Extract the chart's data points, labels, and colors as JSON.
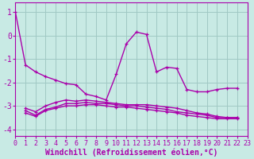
{
  "xlabel": "Windchill (Refroidissement éolien,°C)",
  "bg_color": "#c8eae4",
  "grid_color": "#a0c8c4",
  "line_color": "#aa00aa",
  "tick_color": "#aa00aa",
  "xlim": [
    0,
    23
  ],
  "ylim": [
    -4.3,
    1.4
  ],
  "xticks": [
    0,
    1,
    2,
    3,
    4,
    5,
    6,
    7,
    8,
    9,
    10,
    11,
    12,
    13,
    14,
    15,
    16,
    17,
    18,
    19,
    20,
    21,
    22,
    23
  ],
  "yticks": [
    -4,
    -3,
    -2,
    -1,
    0,
    1
  ],
  "series": [
    [
      1.0,
      -1.25,
      -1.55,
      -1.75,
      -1.9,
      -2.05,
      -2.1,
      -2.5,
      -2.6,
      -2.75,
      -1.65,
      -0.35,
      0.15,
      0.05,
      -1.55,
      -1.35,
      -1.4,
      -2.3,
      -2.4,
      -2.4,
      -2.3,
      -2.25,
      -2.25,
      null
    ],
    [
      null,
      -3.1,
      -3.25,
      -3.0,
      -2.85,
      -2.75,
      -2.8,
      -2.75,
      -2.8,
      -2.85,
      -2.9,
      -2.95,
      -2.95,
      -2.95,
      -3.0,
      -3.05,
      -3.1,
      -3.2,
      -3.3,
      -3.35,
      -3.45,
      -3.5,
      -3.5,
      null
    ],
    [
      null,
      -3.2,
      -3.4,
      -3.15,
      -3.05,
      -2.9,
      -2.9,
      -2.85,
      -2.9,
      -2.9,
      -2.95,
      -3.0,
      -3.0,
      -3.05,
      -3.1,
      -3.15,
      -3.25,
      -3.3,
      -3.35,
      -3.4,
      -3.5,
      -3.5,
      -3.5,
      null
    ],
    [
      null,
      -3.3,
      -3.45,
      -3.2,
      -3.1,
      -3.0,
      -3.0,
      -2.95,
      -2.95,
      -3.0,
      -3.05,
      -3.05,
      -3.1,
      -3.15,
      -3.2,
      -3.25,
      -3.3,
      -3.4,
      -3.45,
      -3.5,
      -3.55,
      -3.55,
      -3.55,
      null
    ]
  ],
  "marker": "+",
  "markersize": 3.5,
  "linewidth": 1.0,
  "xlabel_fontsize": 7,
  "tick_fontsize": 7,
  "dpi": 100
}
